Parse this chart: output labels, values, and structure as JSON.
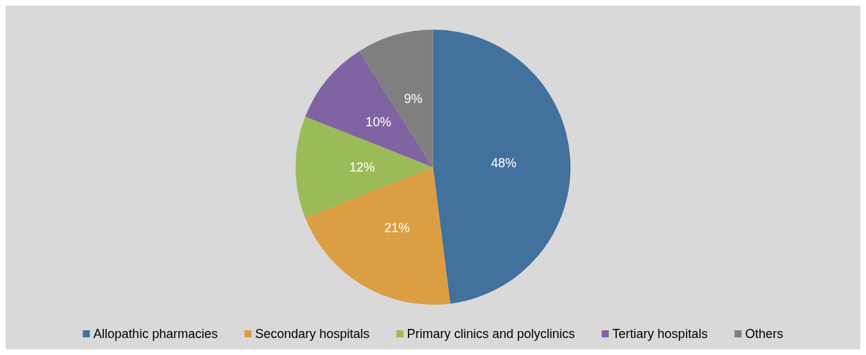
{
  "chart_data": {
    "type": "pie",
    "categories": [
      "Allopathic pharmacies",
      "Secondary hospitals",
      "Primary clinics and polyclinics",
      "Tertiary hospitals",
      "Others"
    ],
    "values": [
      48,
      21,
      12,
      10,
      9
    ],
    "colors": [
      "#41719c",
      "#dc9e42",
      "#9bbb59",
      "#8064a2",
      "#7f7f7f"
    ],
    "value_labels": [
      "48%",
      "21%",
      "12%",
      "10%",
      "9%"
    ],
    "legend": "bottom"
  }
}
